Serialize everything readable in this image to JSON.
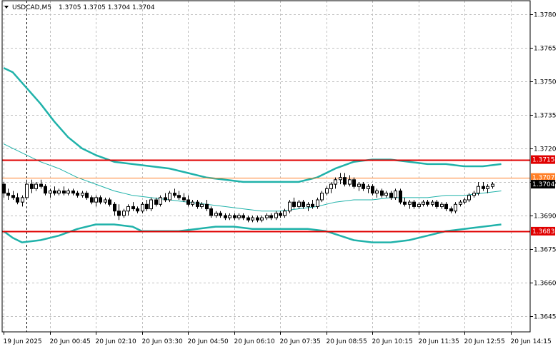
{
  "header": {
    "symbol_timeframe": "USDCAD,M5",
    "ohlc": "1.3705 1.3705 1.3704 1.3704"
  },
  "chart_data": {
    "type": "candlestick",
    "symbol": "USDCAD",
    "timeframe": "M5",
    "ylim": [
      1.3638,
      1.3786
    ],
    "y_ticks": [
      "1.3780",
      "1.3765",
      "1.3750",
      "1.3735",
      "1.3720",
      "1.3705",
      "1.3690",
      "1.3675",
      "1.3660",
      "1.3645"
    ],
    "x_ticks": [
      "19 Jun 2025",
      "20 Jun 00:45",
      "20 Jun 02:10",
      "20 Jun 03:30",
      "20 Jun 04:50",
      "20 Jun 06:10",
      "20 Jun 07:35",
      "20 Jun 08:55",
      "20 Jun 10:15",
      "20 Jun 11:35",
      "20 Jun 12:55",
      "20 Jun 14:15"
    ],
    "x_tick_index": [
      0,
      10,
      20,
      30,
      40,
      50,
      60,
      70,
      80,
      90,
      100,
      110
    ],
    "period_separator_index": 5,
    "grid": true,
    "levels": [
      {
        "label": "1.3715",
        "value": 1.3715,
        "color": "#e00000"
      },
      {
        "label": "1.3683",
        "value": 1.3683,
        "color": "#e00000"
      },
      {
        "label": "1.3707",
        "value": 1.3707,
        "color": "#ff7f27"
      },
      {
        "label": "1.3704",
        "value": 1.3704,
        "color": "#000000"
      }
    ],
    "candles": [
      [
        1.3704,
        1.3705,
        1.3698,
        1.37
      ],
      [
        1.37,
        1.3702,
        1.3697,
        1.3699
      ],
      [
        1.3699,
        1.3701,
        1.3697,
        1.3698
      ],
      [
        1.3698,
        1.37,
        1.3695,
        1.3696
      ],
      [
        1.3696,
        1.3699,
        1.3694,
        1.3698
      ],
      [
        1.3698,
        1.3706,
        1.3697,
        1.3704
      ],
      [
        1.3704,
        1.3706,
        1.37,
        1.3702
      ],
      [
        1.3702,
        1.3705,
        1.3701,
        1.3704
      ],
      [
        1.3704,
        1.3706,
        1.3702,
        1.3703
      ],
      [
        1.3703,
        1.3704,
        1.3699,
        1.37
      ],
      [
        1.37,
        1.3702,
        1.3698,
        1.3701
      ],
      [
        1.3701,
        1.3703,
        1.3699,
        1.37
      ],
      [
        1.37,
        1.3702,
        1.3699,
        1.3701
      ],
      [
        1.3701,
        1.3703,
        1.3699,
        1.37
      ],
      [
        1.37,
        1.3702,
        1.3699,
        1.3701
      ],
      [
        1.3701,
        1.3702,
        1.3699,
        1.37
      ],
      [
        1.37,
        1.3701,
        1.3698,
        1.3699
      ],
      [
        1.3699,
        1.3701,
        1.3698,
        1.37
      ],
      [
        1.37,
        1.3701,
        1.3697,
        1.3698
      ],
      [
        1.3698,
        1.3699,
        1.3695,
        1.3696
      ],
      [
        1.3696,
        1.3699,
        1.3694,
        1.3698
      ],
      [
        1.3698,
        1.3699,
        1.3695,
        1.3696
      ],
      [
        1.3696,
        1.3698,
        1.3695,
        1.3697
      ],
      [
        1.3697,
        1.3698,
        1.3694,
        1.3695
      ],
      [
        1.3695,
        1.3696,
        1.369,
        1.3692
      ],
      [
        1.3692,
        1.3695,
        1.3688,
        1.369
      ],
      [
        1.369,
        1.3693,
        1.3689,
        1.3692
      ],
      [
        1.3692,
        1.3695,
        1.369,
        1.3694
      ],
      [
        1.3694,
        1.3696,
        1.3692,
        1.3693
      ],
      [
        1.3693,
        1.3694,
        1.3691,
        1.3692
      ],
      [
        1.3692,
        1.3696,
        1.3691,
        1.3695
      ],
      [
        1.3695,
        1.3697,
        1.3692,
        1.3693
      ],
      [
        1.3693,
        1.3698,
        1.3692,
        1.3697
      ],
      [
        1.3697,
        1.3698,
        1.3694,
        1.3695
      ],
      [
        1.3695,
        1.3699,
        1.3694,
        1.3698
      ],
      [
        1.3698,
        1.37,
        1.3696,
        1.3697
      ],
      [
        1.3697,
        1.3701,
        1.3696,
        1.37
      ],
      [
        1.37,
        1.3702,
        1.3698,
        1.3699
      ],
      [
        1.3699,
        1.3701,
        1.3697,
        1.3698
      ],
      [
        1.3698,
        1.37,
        1.3696,
        1.3697
      ],
      [
        1.3697,
        1.3699,
        1.3694,
        1.3695
      ],
      [
        1.3695,
        1.3697,
        1.3694,
        1.3696
      ],
      [
        1.3696,
        1.3697,
        1.3693,
        1.3694
      ],
      [
        1.3694,
        1.3696,
        1.3693,
        1.3695
      ],
      [
        1.3695,
        1.3697,
        1.3692,
        1.3693
      ],
      [
        1.3693,
        1.3694,
        1.3689,
        1.369
      ],
      [
        1.369,
        1.3692,
        1.3689,
        1.3691
      ],
      [
        1.3691,
        1.3692,
        1.3689,
        1.369
      ],
      [
        1.369,
        1.3691,
        1.3688,
        1.3689
      ],
      [
        1.3689,
        1.3691,
        1.3688,
        1.369
      ],
      [
        1.369,
        1.3691,
        1.3688,
        1.3689
      ],
      [
        1.3689,
        1.3691,
        1.3688,
        1.369
      ],
      [
        1.369,
        1.3691,
        1.3688,
        1.3689
      ],
      [
        1.3689,
        1.369,
        1.3687,
        1.3688
      ],
      [
        1.3688,
        1.369,
        1.3687,
        1.3689
      ],
      [
        1.3689,
        1.369,
        1.3687,
        1.3688
      ],
      [
        1.3688,
        1.369,
        1.3687,
        1.3689
      ],
      [
        1.3689,
        1.3691,
        1.3688,
        1.369
      ],
      [
        1.369,
        1.3691,
        1.3688,
        1.3689
      ],
      [
        1.3689,
        1.3692,
        1.3688,
        1.3691
      ],
      [
        1.3691,
        1.3692,
        1.3689,
        1.369
      ],
      [
        1.369,
        1.3693,
        1.3689,
        1.3692
      ],
      [
        1.3692,
        1.3697,
        1.3691,
        1.3696
      ],
      [
        1.3696,
        1.3698,
        1.3693,
        1.3694
      ],
      [
        1.3694,
        1.3697,
        1.3693,
        1.3696
      ],
      [
        1.3696,
        1.3697,
        1.3693,
        1.3694
      ],
      [
        1.3694,
        1.3696,
        1.3692,
        1.3695
      ],
      [
        1.3695,
        1.3697,
        1.3693,
        1.3694
      ],
      [
        1.3694,
        1.3698,
        1.3693,
        1.3697
      ],
      [
        1.3697,
        1.3701,
        1.3696,
        1.37
      ],
      [
        1.37,
        1.3703,
        1.3699,
        1.3702
      ],
      [
        1.3702,
        1.3705,
        1.37,
        1.3704
      ],
      [
        1.3704,
        1.3707,
        1.3702,
        1.3706
      ],
      [
        1.3706,
        1.3709,
        1.3704,
        1.3707
      ],
      [
        1.3707,
        1.3709,
        1.3703,
        1.3704
      ],
      [
        1.3704,
        1.3708,
        1.3703,
        1.3706
      ],
      [
        1.3706,
        1.3707,
        1.3702,
        1.3703
      ],
      [
        1.3703,
        1.3705,
        1.3701,
        1.3704
      ],
      [
        1.3704,
        1.3705,
        1.3701,
        1.3702
      ],
      [
        1.3702,
        1.3704,
        1.37,
        1.3703
      ],
      [
        1.3703,
        1.3704,
        1.3699,
        1.37
      ],
      [
        1.37,
        1.3702,
        1.3698,
        1.3701
      ],
      [
        1.3701,
        1.3702,
        1.3698,
        1.3699
      ],
      [
        1.3699,
        1.3701,
        1.3698,
        1.37
      ],
      [
        1.37,
        1.3701,
        1.3697,
        1.3698
      ],
      [
        1.3698,
        1.3702,
        1.3697,
        1.3701
      ],
      [
        1.3701,
        1.3702,
        1.3695,
        1.3696
      ],
      [
        1.3696,
        1.3698,
        1.3694,
        1.3695
      ],
      [
        1.3695,
        1.3697,
        1.3693,
        1.3696
      ],
      [
        1.3696,
        1.3697,
        1.3693,
        1.3694
      ],
      [
        1.3694,
        1.3696,
        1.3693,
        1.3695
      ],
      [
        1.3695,
        1.3697,
        1.3694,
        1.3696
      ],
      [
        1.3696,
        1.3697,
        1.3694,
        1.3695
      ],
      [
        1.3695,
        1.3697,
        1.3694,
        1.3696
      ],
      [
        1.3696,
        1.3697,
        1.3693,
        1.3694
      ],
      [
        1.3694,
        1.3696,
        1.3693,
        1.3695
      ],
      [
        1.3695,
        1.3696,
        1.3692,
        1.3693
      ],
      [
        1.3693,
        1.3694,
        1.3691,
        1.3692
      ],
      [
        1.3692,
        1.3696,
        1.3691,
        1.3695
      ],
      [
        1.3695,
        1.3697,
        1.3694,
        1.3696
      ],
      [
        1.3696,
        1.3698,
        1.3695,
        1.3697
      ],
      [
        1.3697,
        1.37,
        1.3696,
        1.3699
      ],
      [
        1.3699,
        1.3701,
        1.3698,
        1.37
      ],
      [
        1.37,
        1.3705,
        1.3699,
        1.3703
      ],
      [
        1.3703,
        1.3705,
        1.3701,
        1.3702
      ],
      [
        1.3702,
        1.3704,
        1.37,
        1.3703
      ],
      [
        1.3703,
        1.3705,
        1.3702,
        1.3704
      ]
    ],
    "bollinger": {
      "color": "#20b2aa",
      "upper": [
        [
          0,
          1.3756
        ],
        [
          2,
          1.3754
        ],
        [
          5,
          1.3747
        ],
        [
          8,
          1.374
        ],
        [
          11,
          1.3732
        ],
        [
          14,
          1.3725
        ],
        [
          17,
          1.372
        ],
        [
          20,
          1.3717
        ],
        [
          24,
          1.3714
        ],
        [
          28,
          1.3713
        ],
        [
          32,
          1.3712
        ],
        [
          36,
          1.3711
        ],
        [
          40,
          1.3709
        ],
        [
          44,
          1.3707
        ],
        [
          48,
          1.3706
        ],
        [
          52,
          1.3705
        ],
        [
          56,
          1.3705
        ],
        [
          60,
          1.3705
        ],
        [
          64,
          1.3705
        ],
        [
          68,
          1.3707
        ],
        [
          72,
          1.3711
        ],
        [
          76,
          1.3714
        ],
        [
          80,
          1.3715
        ],
        [
          84,
          1.3715
        ],
        [
          88,
          1.3714
        ],
        [
          92,
          1.3713
        ],
        [
          96,
          1.3713
        ],
        [
          100,
          1.3712
        ],
        [
          104,
          1.3712
        ],
        [
          108,
          1.3713
        ]
      ],
      "middle": [
        [
          0,
          1.3722
        ],
        [
          4,
          1.3718
        ],
        [
          8,
          1.3714
        ],
        [
          12,
          1.3711
        ],
        [
          16,
          1.3707
        ],
        [
          20,
          1.3704
        ],
        [
          24,
          1.3701
        ],
        [
          28,
          1.3699
        ],
        [
          32,
          1.3698
        ],
        [
          36,
          1.3697
        ],
        [
          40,
          1.3696
        ],
        [
          44,
          1.3695
        ],
        [
          48,
          1.3694
        ],
        [
          52,
          1.3693
        ],
        [
          56,
          1.3692
        ],
        [
          60,
          1.3692
        ],
        [
          64,
          1.3693
        ],
        [
          68,
          1.3694
        ],
        [
          72,
          1.3696
        ],
        [
          76,
          1.3697
        ],
        [
          80,
          1.3697
        ],
        [
          84,
          1.3698
        ],
        [
          88,
          1.3698
        ],
        [
          92,
          1.3698
        ],
        [
          96,
          1.3699
        ],
        [
          100,
          1.3699
        ],
        [
          104,
          1.37
        ],
        [
          108,
          1.3701
        ]
      ],
      "lower": [
        [
          0,
          1.3683
        ],
        [
          2,
          1.368
        ],
        [
          4,
          1.3678
        ],
        [
          8,
          1.3679
        ],
        [
          12,
          1.3681
        ],
        [
          16,
          1.3684
        ],
        [
          20,
          1.3686
        ],
        [
          24,
          1.3686
        ],
        [
          28,
          1.3685
        ],
        [
          30,
          1.3683
        ],
        [
          34,
          1.3683
        ],
        [
          38,
          1.3683
        ],
        [
          42,
          1.3684
        ],
        [
          46,
          1.3685
        ],
        [
          50,
          1.3685
        ],
        [
          54,
          1.3684
        ],
        [
          58,
          1.3684
        ],
        [
          62,
          1.3684
        ],
        [
          66,
          1.3684
        ],
        [
          70,
          1.3683
        ],
        [
          73,
          1.3681
        ],
        [
          76,
          1.3679
        ],
        [
          80,
          1.3678
        ],
        [
          84,
          1.3678
        ],
        [
          88,
          1.3679
        ],
        [
          92,
          1.3681
        ],
        [
          96,
          1.3683
        ],
        [
          100,
          1.3684
        ],
        [
          104,
          1.3685
        ],
        [
          108,
          1.3686
        ]
      ]
    }
  }
}
